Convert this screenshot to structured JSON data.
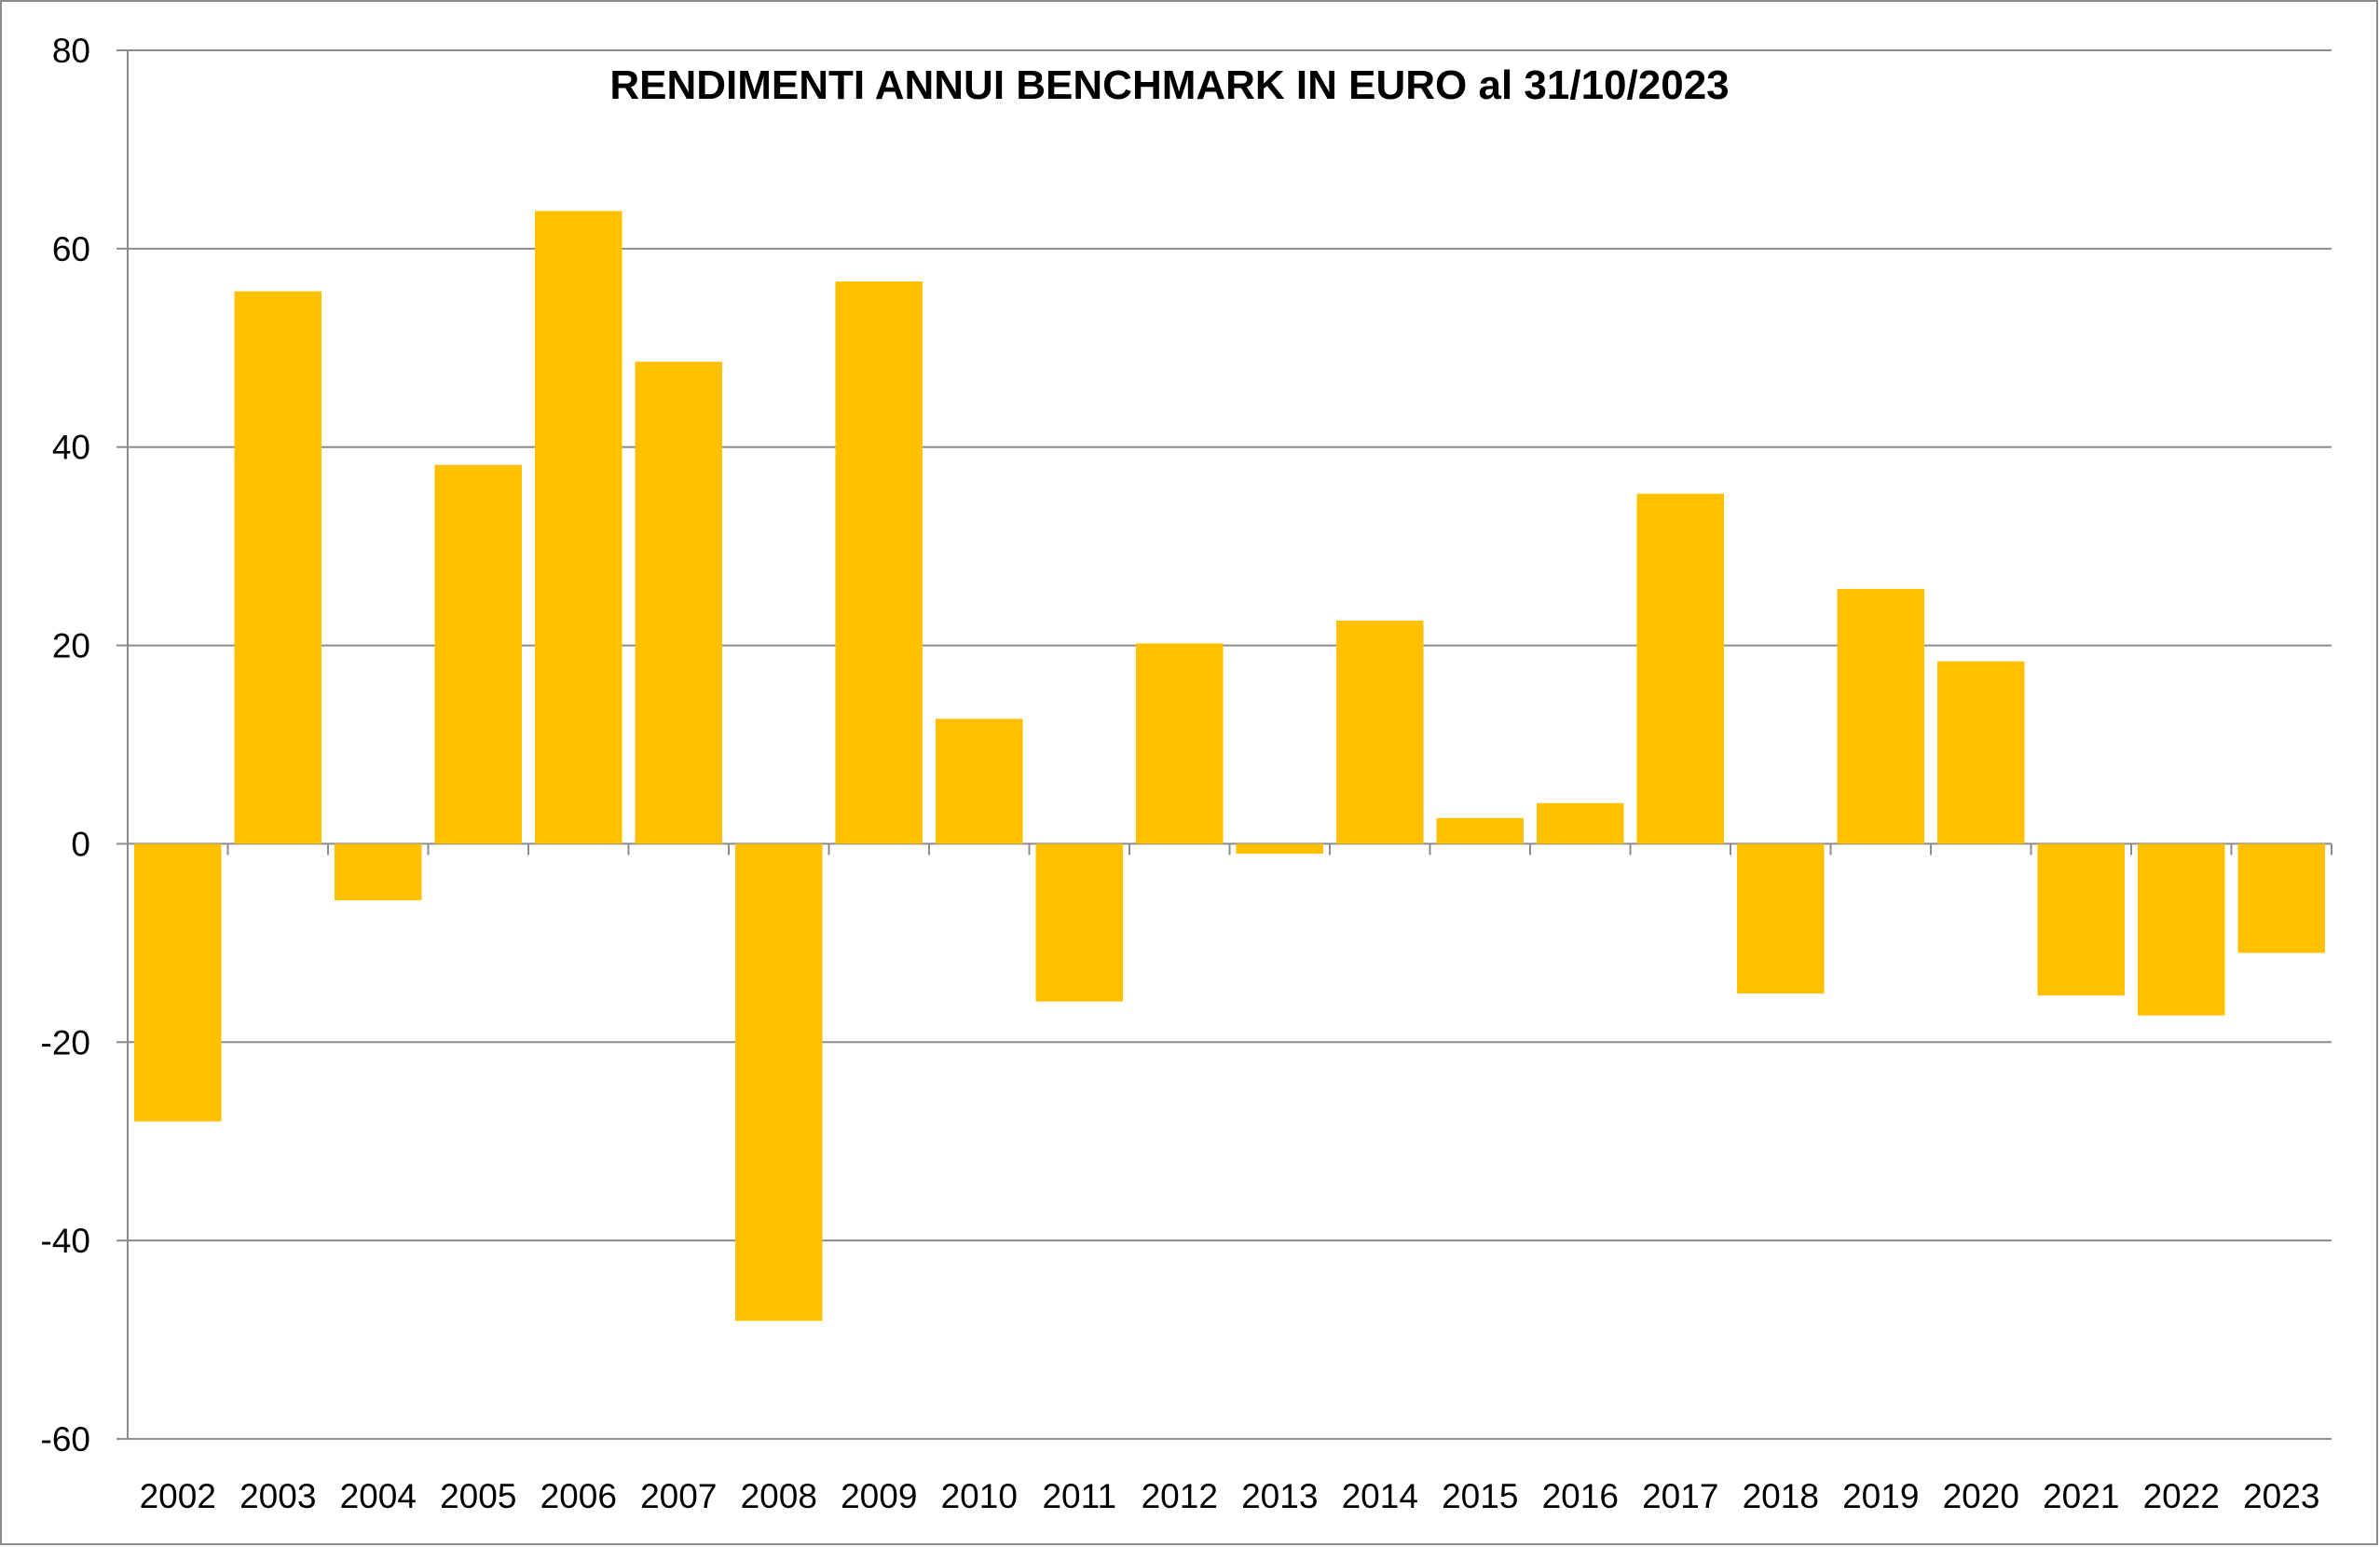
{
  "chart_data": {
    "type": "bar",
    "title": "RENDIMENTI ANNUI BENCHMARK IN EURO al 31/10/2023",
    "xlabel": "",
    "ylabel": "",
    "ylim": [
      -60,
      80
    ],
    "yticks": [
      -60,
      -40,
      -20,
      0,
      20,
      40,
      60,
      80
    ],
    "grid": true,
    "legend": "none",
    "bar_color": "#FFC000",
    "categories": [
      "2002",
      "2003",
      "2004",
      "2005",
      "2006",
      "2007",
      "2008",
      "2009",
      "2010",
      "2011",
      "2012",
      "2013",
      "2014",
      "2015",
      "2016",
      "2017",
      "2018",
      "2019",
      "2020",
      "2021",
      "2022",
      "2023"
    ],
    "values": [
      -28.0,
      55.7,
      -5.7,
      38.2,
      63.8,
      48.6,
      -48.1,
      56.7,
      12.6,
      -15.9,
      20.2,
      -1.0,
      22.5,
      2.6,
      4.1,
      35.3,
      -15.1,
      25.7,
      18.4,
      -15.3,
      -17.3,
      -11.0
    ]
  }
}
